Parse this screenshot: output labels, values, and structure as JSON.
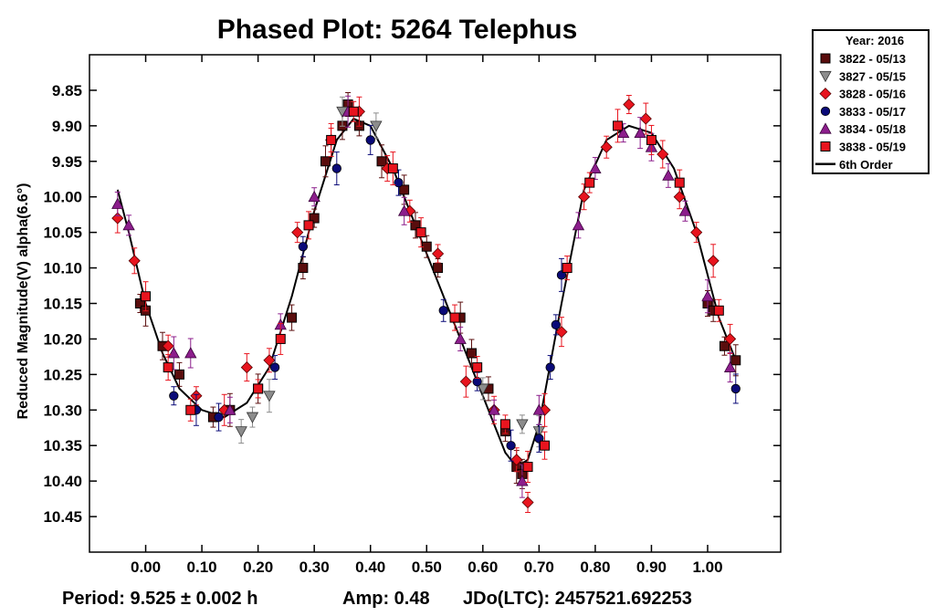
{
  "chart_data": {
    "type": "scatter",
    "title": "Phased Plot: 5264 Telephus",
    "ylabel": "Reduced Magnitude(V) alpha(6.6°)",
    "xlabel": "",
    "xlim": [
      -0.1,
      1.13
    ],
    "ylim": [
      10.5,
      9.8
    ],
    "y_inverted": true,
    "x_ticks": [
      "0.00",
      "0.10",
      "0.20",
      "0.30",
      "0.40",
      "0.50",
      "0.60",
      "0.70",
      "0.80",
      "0.90",
      "1.00"
    ],
    "y_ticks": [
      "9.85",
      "9.90",
      "9.95",
      "10.00",
      "10.05",
      "10.10",
      "10.15",
      "10.20",
      "10.25",
      "10.30",
      "10.35",
      "10.40",
      "10.45"
    ],
    "legend": {
      "title": "Year: 2016",
      "placement": "outside-right",
      "entries": [
        "3822 - 05/13",
        "3827 - 05/15",
        "3828 - 05/16",
        "3833 - 05/17",
        "3834 - 05/18",
        "3838 - 05/19",
        "6th Order"
      ]
    },
    "series": [
      {
        "name": "3822 - 05/13",
        "marker": "square",
        "color": "#5a0d0d",
        "x": [
          -0.01,
          0.0,
          0.03,
          0.06,
          0.12,
          0.15,
          0.2,
          0.26,
          0.28,
          0.3,
          0.32,
          0.35,
          0.36,
          0.38,
          0.42,
          0.46,
          0.48,
          0.5,
          0.52,
          0.56,
          0.58,
          0.61,
          0.64,
          0.66,
          0.67,
          1.0,
          1.01,
          1.03,
          1.05
        ],
        "y": [
          10.15,
          10.16,
          10.21,
          10.25,
          10.31,
          10.3,
          10.27,
          10.17,
          10.1,
          10.03,
          9.95,
          9.9,
          9.87,
          9.9,
          9.95,
          9.99,
          10.04,
          10.07,
          10.1,
          10.17,
          10.22,
          10.27,
          10.33,
          10.38,
          10.39,
          10.15,
          10.16,
          10.21,
          10.23
        ]
      },
      {
        "name": "3827 - 05/15",
        "marker": "triangle-down",
        "color": "#8c8c8c",
        "x": [
          0.17,
          0.19,
          0.22,
          0.35,
          0.41,
          0.6,
          0.67,
          0.7
        ],
        "y": [
          10.33,
          10.31,
          10.28,
          9.88,
          9.9,
          10.27,
          10.32,
          10.33
        ]
      },
      {
        "name": "3828 - 05/16",
        "marker": "diamond",
        "color": "#e8141e",
        "x": [
          -0.05,
          -0.02,
          0.04,
          0.09,
          0.14,
          0.18,
          0.22,
          0.27,
          0.33,
          0.38,
          0.43,
          0.47,
          0.52,
          0.57,
          0.62,
          0.66,
          0.68,
          0.71,
          0.74,
          0.78,
          0.82,
          0.86,
          0.89,
          0.92,
          0.95,
          0.98,
          1.01,
          1.04
        ],
        "y": [
          10.03,
          10.09,
          10.21,
          10.28,
          10.3,
          10.24,
          10.23,
          10.05,
          9.92,
          9.88,
          9.96,
          10.02,
          10.08,
          10.26,
          10.3,
          10.37,
          10.43,
          10.3,
          10.19,
          10.0,
          9.93,
          9.87,
          9.89,
          9.94,
          10.0,
          10.05,
          10.09,
          10.2
        ]
      },
      {
        "name": "3833 - 05/17",
        "marker": "circle",
        "color": "#0a0a78",
        "x": [
          0.05,
          0.09,
          0.13,
          0.23,
          0.28,
          0.34,
          0.4,
          0.45,
          0.53,
          0.59,
          0.65,
          0.7,
          0.72,
          0.73,
          0.74,
          1.05
        ],
        "y": [
          10.28,
          10.3,
          10.31,
          10.24,
          10.07,
          9.96,
          9.92,
          9.98,
          10.16,
          10.26,
          10.35,
          10.34,
          10.24,
          10.18,
          10.11,
          10.27
        ]
      },
      {
        "name": "3834 - 05/18",
        "marker": "triangle-up",
        "color": "#8c1e8c",
        "x": [
          -0.05,
          -0.03,
          0.05,
          0.08,
          0.15,
          0.24,
          0.3,
          0.36,
          0.46,
          0.56,
          0.62,
          0.67,
          0.7,
          0.77,
          0.8,
          0.85,
          0.88,
          0.9,
          0.93,
          0.96,
          1.0,
          1.04
        ],
        "y": [
          10.01,
          10.04,
          10.22,
          10.22,
          10.3,
          10.18,
          10.0,
          9.88,
          10.02,
          10.2,
          10.3,
          10.4,
          10.3,
          10.04,
          9.96,
          9.91,
          9.91,
          9.93,
          9.97,
          10.02,
          10.14,
          10.24
        ]
      },
      {
        "name": "3838 - 05/19",
        "marker": "square",
        "color": "#e8141e",
        "x": [
          0.0,
          0.04,
          0.08,
          0.2,
          0.24,
          0.29,
          0.33,
          0.37,
          0.44,
          0.49,
          0.55,
          0.59,
          0.64,
          0.68,
          0.71,
          0.75,
          0.79,
          0.84,
          0.9,
          0.95,
          1.02
        ],
        "y": [
          10.14,
          10.24,
          10.3,
          10.27,
          10.2,
          10.04,
          9.92,
          9.88,
          9.96,
          10.05,
          10.17,
          10.24,
          10.32,
          10.38,
          10.35,
          10.1,
          9.98,
          9.9,
          9.92,
          9.98,
          10.16
        ]
      }
    ],
    "fit": {
      "name": "6th Order",
      "color": "#000000",
      "x": [
        -0.05,
        -0.03,
        0.0,
        0.03,
        0.06,
        0.1,
        0.14,
        0.18,
        0.22,
        0.26,
        0.3,
        0.34,
        0.37,
        0.4,
        0.44,
        0.48,
        0.52,
        0.56,
        0.6,
        0.64,
        0.66,
        0.68,
        0.7,
        0.74,
        0.78,
        0.82,
        0.86,
        0.9,
        0.94,
        0.98,
        1.02,
        1.05
      ],
      "y": [
        9.99,
        10.05,
        10.15,
        10.22,
        10.27,
        10.3,
        10.31,
        10.29,
        10.24,
        10.14,
        10.02,
        9.92,
        9.89,
        9.9,
        9.96,
        10.04,
        10.12,
        10.2,
        10.28,
        10.36,
        10.38,
        10.37,
        10.32,
        10.15,
        9.99,
        9.92,
        9.9,
        9.91,
        9.96,
        10.05,
        10.17,
        10.23
      ]
    }
  },
  "footer": {
    "period": "Period: 9.525 ± 0.002 h",
    "amp": "Amp: 0.48",
    "jdo": "JDo(LTC): 2457521.692253"
  }
}
